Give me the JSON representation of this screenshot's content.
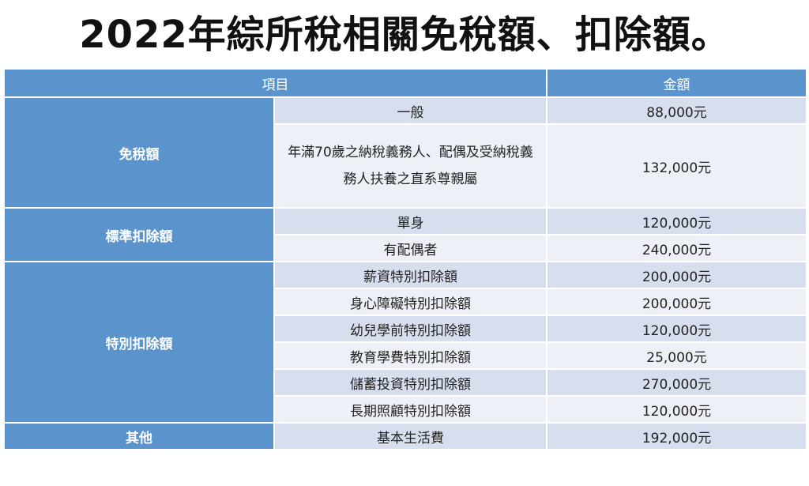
{
  "title": "2022年綜所稅相關免稅額、扣除額。",
  "table": {
    "header": {
      "item": "項目",
      "amount": "金額"
    },
    "groups": [
      {
        "category": "免稅額",
        "rows": [
          {
            "item": "一般",
            "amount": "88,000元"
          },
          {
            "item": "年滿70歲之納稅義務人、配偶及受納稅義務人扶養之直系尊親屬",
            "amount": "132,000元"
          }
        ]
      },
      {
        "category": "標準扣除額",
        "rows": [
          {
            "item": "單身",
            "amount": "120,000元"
          },
          {
            "item": "有配偶者",
            "amount": "240,000元"
          }
        ]
      },
      {
        "category": "特別扣除額",
        "rows": [
          {
            "item": "薪資特別扣除額",
            "amount": "200,000元"
          },
          {
            "item": "身心障礙特別扣除額",
            "amount": "200,000元"
          },
          {
            "item": "幼兒學前特別扣除額",
            "amount": "120,000元"
          },
          {
            "item": "教育學費特別扣除額",
            "amount": "25,000元"
          },
          {
            "item": "儲蓄投資特別扣除額",
            "amount": "270,000元"
          },
          {
            "item": "長期照顧特別扣除額",
            "amount": "120,000元"
          }
        ]
      },
      {
        "category": "其他",
        "rows": [
          {
            "item": "基本生活費",
            "amount": "192,000元"
          }
        ]
      }
    ]
  }
}
